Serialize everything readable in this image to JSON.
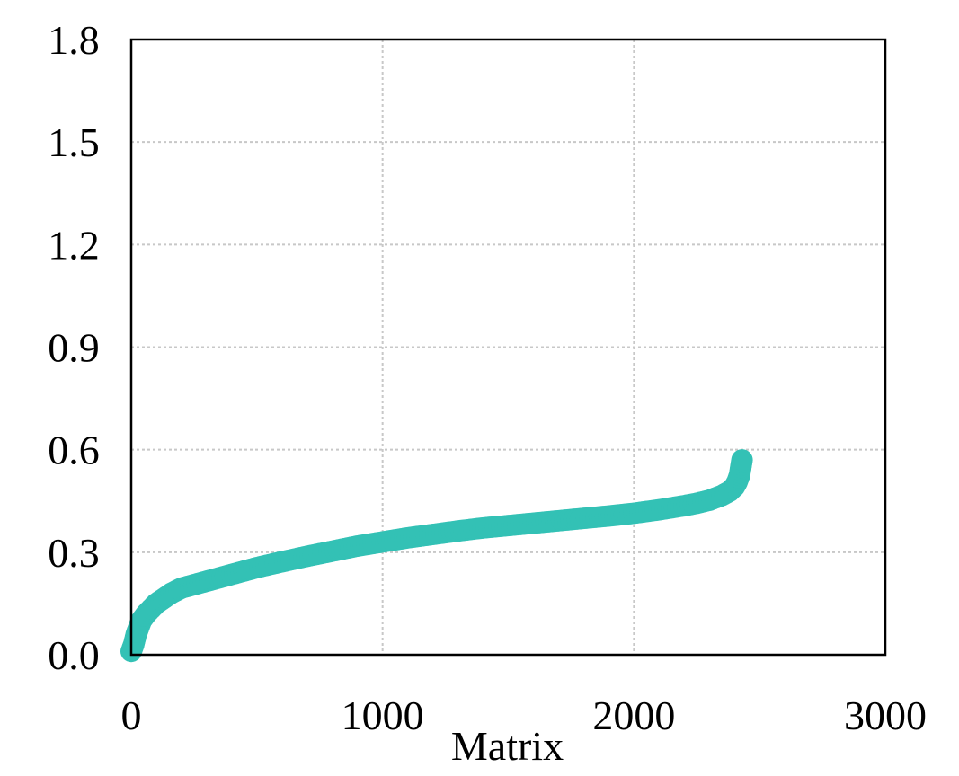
{
  "chart_data": {
    "type": "scatter",
    "title": "",
    "xlabel": "Matrix",
    "ylabel": "",
    "xlim": [
      0,
      3000
    ],
    "ylim": [
      0,
      1.8
    ],
    "xticks": [
      0,
      1000,
      2000,
      3000
    ],
    "xtick_labels": [
      "0",
      "1000",
      "2000",
      "3000"
    ],
    "yticks": [
      0,
      0.3,
      0.6,
      0.9,
      1.2,
      1.5,
      1.8
    ],
    "ytick_labels": [
      "0.0",
      "0.3",
      "0.6",
      "0.9",
      "1.2",
      "1.5",
      "1.8"
    ],
    "grid": true,
    "legend": "none",
    "series": [
      {
        "color": "#33c1b5",
        "x": [
          0,
          10,
          20,
          30,
          40,
          60,
          80,
          100,
          130,
          160,
          200,
          250,
          300,
          400,
          500,
          600,
          700,
          800,
          900,
          1000,
          1100,
          1200,
          1300,
          1400,
          1500,
          1600,
          1700,
          1800,
          1900,
          2000,
          2100,
          2200,
          2250,
          2300,
          2350,
          2380,
          2400,
          2410,
          2420,
          2425,
          2430
        ],
        "y": [
          0.01,
          0.03,
          0.06,
          0.08,
          0.1,
          0.12,
          0.135,
          0.15,
          0.165,
          0.18,
          0.195,
          0.205,
          0.215,
          0.235,
          0.255,
          0.272,
          0.288,
          0.303,
          0.318,
          0.33,
          0.342,
          0.352,
          0.362,
          0.371,
          0.378,
          0.385,
          0.392,
          0.399,
          0.406,
          0.414,
          0.424,
          0.436,
          0.443,
          0.452,
          0.466,
          0.478,
          0.492,
          0.505,
          0.525,
          0.548,
          0.57
        ]
      }
    ]
  }
}
